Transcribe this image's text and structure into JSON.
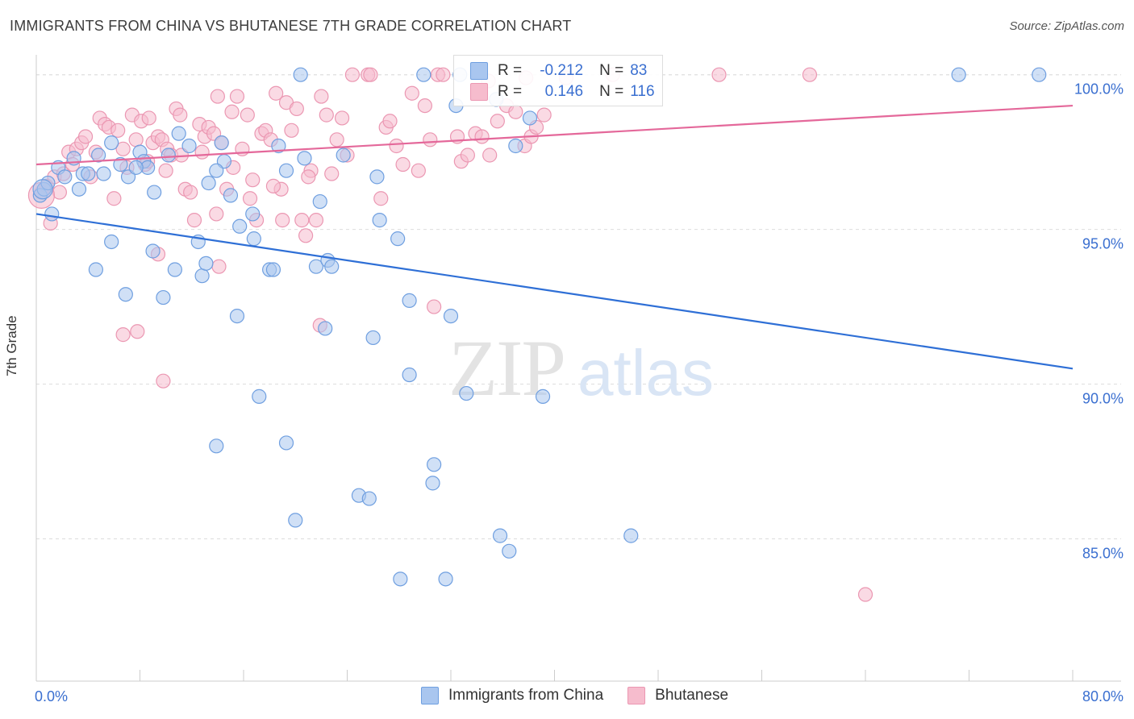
{
  "header": {
    "title": "IMMIGRANTS FROM CHINA VS BHUTANESE 7TH GRADE CORRELATION CHART",
    "source": "Source: ZipAtlas.com"
  },
  "watermark": {
    "zip": "ZIP",
    "atlas": "atlas"
  },
  "colors": {
    "blue_fill": "#a9c6ef",
    "blue_stroke": "#6f9fe0",
    "blue_line": "#2e6fd6",
    "pink_fill": "#f6bccd",
    "pink_stroke": "#eb97b2",
    "pink_line": "#e4689a",
    "axis_text": "#3a6fd0",
    "grid": "#dddddd"
  },
  "legend": {
    "rows": [
      {
        "r_label": "R =",
        "r_value": "-0.212",
        "n_label": "N =",
        "n_value": "83",
        "swatch": "blue"
      },
      {
        "r_label": "R =",
        "r_value": "0.146",
        "n_label": "N =",
        "n_value": "116",
        "swatch": "pink"
      }
    ]
  },
  "bottom_legend": [
    "Immigrants from China",
    "Bhutanese"
  ],
  "chart_data": {
    "type": "scatter",
    "title": "IMMIGRANTS FROM CHINA VS BHUTANESE 7TH GRADE CORRELATION CHART",
    "xlabel": "",
    "ylabel": "7th Grade",
    "xlim": [
      0,
      80
    ],
    "ylim": [
      80.4,
      100.8
    ],
    "x_tick_labels": [
      "0.0%",
      "80.0%"
    ],
    "y_ticks": [
      85,
      90,
      95,
      100
    ],
    "y_tick_labels": [
      "85.0%",
      "90.0%",
      "95.0%",
      "100.0%"
    ],
    "grid": true,
    "legend_position": "top-center",
    "series": [
      {
        "name": "Immigrants from China",
        "color": "#a9c6ef",
        "trend": {
          "x": [
            0,
            80
          ],
          "y": [
            95.5,
            90.5
          ]
        },
        "points": [
          [
            0.3,
            96.1
          ],
          [
            0.6,
            96.3
          ],
          [
            0.9,
            96.5
          ],
          [
            1.2,
            95.5
          ],
          [
            1.7,
            97.0
          ],
          [
            2.2,
            96.7
          ],
          [
            2.9,
            97.3
          ],
          [
            3.3,
            96.3
          ],
          [
            3.6,
            96.8
          ],
          [
            4.0,
            96.8
          ],
          [
            4.8,
            97.4
          ],
          [
            5.2,
            96.8
          ],
          [
            5.8,
            97.8
          ],
          [
            6.5,
            97.1
          ],
          [
            7.1,
            96.7
          ],
          [
            8.0,
            97.5
          ],
          [
            8.3,
            97.2
          ],
          [
            8.6,
            97.0
          ],
          [
            9.1,
            96.2
          ],
          [
            10.2,
            97.4
          ],
          [
            11.0,
            98.1
          ],
          [
            11.8,
            97.7
          ],
          [
            13.3,
            96.5
          ],
          [
            14.3,
            97.8
          ],
          [
            14.5,
            97.2
          ],
          [
            15.0,
            96.1
          ],
          [
            15.7,
            95.1
          ],
          [
            16.7,
            95.5
          ],
          [
            18.7,
            97.7
          ],
          [
            19.3,
            96.9
          ],
          [
            20.7,
            97.3
          ],
          [
            21.9,
            95.9
          ],
          [
            23.7,
            97.4
          ],
          [
            26.3,
            96.7
          ],
          [
            26.5,
            95.3
          ],
          [
            27.9,
            94.7
          ],
          [
            5.8,
            94.6
          ],
          [
            4.6,
            93.7
          ],
          [
            9.0,
            94.3
          ],
          [
            10.7,
            93.7
          ],
          [
            12.5,
            94.6
          ],
          [
            12.8,
            93.5
          ],
          [
            13.1,
            93.9
          ],
          [
            16.8,
            94.7
          ],
          [
            18.0,
            93.7
          ],
          [
            18.3,
            93.7
          ],
          [
            21.6,
            93.8
          ],
          [
            22.5,
            94.0
          ],
          [
            22.8,
            93.8
          ],
          [
            6.9,
            92.9
          ],
          [
            9.8,
            92.8
          ],
          [
            15.5,
            92.2
          ],
          [
            22.3,
            91.8
          ],
          [
            26.0,
            91.5
          ],
          [
            28.8,
            92.7
          ],
          [
            32.0,
            92.2
          ],
          [
            17.2,
            89.6
          ],
          [
            28.8,
            90.3
          ],
          [
            33.2,
            89.7
          ],
          [
            39.1,
            89.6
          ],
          [
            13.9,
            88.0
          ],
          [
            19.3,
            88.1
          ],
          [
            30.7,
            87.4
          ],
          [
            30.6,
            86.8
          ],
          [
            24.9,
            86.4
          ],
          [
            25.7,
            86.3
          ],
          [
            20.0,
            85.6
          ],
          [
            35.8,
            85.1
          ],
          [
            36.5,
            84.6
          ],
          [
            45.9,
            85.1
          ],
          [
            28.1,
            83.7
          ],
          [
            31.6,
            83.7
          ],
          [
            20.4,
            100.0
          ],
          [
            29.9,
            100.0
          ],
          [
            32.7,
            100.0
          ],
          [
            71.2,
            100.0
          ],
          [
            77.4,
            100.0
          ],
          [
            37.0,
            97.7
          ],
          [
            32.4,
            99.0
          ],
          [
            35.5,
            99.2
          ],
          [
            38.1,
            98.6
          ],
          [
            7.7,
            97.0
          ],
          [
            13.9,
            96.9
          ]
        ]
      },
      {
        "name": "Bhutanese",
        "color": "#f6bccd",
        "trend": {
          "x": [
            0,
            80
          ],
          "y": [
            97.1,
            99.0
          ]
        },
        "points": [
          [
            0.4,
            96.2
          ],
          [
            0.8,
            96.4
          ],
          [
            1.1,
            95.2
          ],
          [
            1.4,
            96.7
          ],
          [
            1.8,
            96.2
          ],
          [
            2.1,
            96.8
          ],
          [
            2.5,
            97.5
          ],
          [
            2.8,
            97.1
          ],
          [
            3.1,
            97.6
          ],
          [
            3.5,
            97.8
          ],
          [
            3.8,
            98.0
          ],
          [
            4.2,
            96.7
          ],
          [
            4.6,
            97.5
          ],
          [
            4.9,
            98.6
          ],
          [
            5.3,
            98.4
          ],
          [
            5.6,
            98.3
          ],
          [
            6.0,
            96.0
          ],
          [
            6.3,
            98.2
          ],
          [
            6.7,
            97.6
          ],
          [
            7.0,
            97.0
          ],
          [
            7.4,
            98.7
          ],
          [
            7.7,
            97.9
          ],
          [
            8.1,
            98.5
          ],
          [
            8.4,
            97.1
          ],
          [
            8.7,
            98.6
          ],
          [
            9.0,
            97.8
          ],
          [
            9.4,
            98.0
          ],
          [
            9.7,
            97.9
          ],
          [
            10.1,
            97.6
          ],
          [
            10.4,
            97.4
          ],
          [
            10.8,
            98.9
          ],
          [
            11.1,
            98.7
          ],
          [
            11.5,
            96.3
          ],
          [
            11.9,
            96.2
          ],
          [
            12.2,
            95.3
          ],
          [
            12.6,
            98.4
          ],
          [
            13.0,
            98.0
          ],
          [
            13.3,
            98.3
          ],
          [
            13.7,
            98.1
          ],
          [
            14.0,
            99.3
          ],
          [
            14.3,
            97.8
          ],
          [
            14.7,
            96.3
          ],
          [
            15.1,
            98.8
          ],
          [
            15.5,
            99.3
          ],
          [
            15.9,
            97.6
          ],
          [
            16.3,
            98.7
          ],
          [
            16.7,
            96.6
          ],
          [
            17.0,
            95.3
          ],
          [
            17.4,
            98.1
          ],
          [
            17.7,
            98.2
          ],
          [
            18.1,
            97.9
          ],
          [
            18.5,
            99.4
          ],
          [
            18.9,
            96.3
          ],
          [
            19.3,
            99.1
          ],
          [
            19.7,
            98.2
          ],
          [
            20.1,
            98.9
          ],
          [
            20.5,
            95.3
          ],
          [
            20.8,
            94.8
          ],
          [
            21.2,
            96.9
          ],
          [
            21.6,
            95.3
          ],
          [
            22.0,
            99.3
          ],
          [
            22.4,
            98.7
          ],
          [
            22.8,
            96.8
          ],
          [
            23.2,
            97.9
          ],
          [
            23.6,
            98.6
          ],
          [
            24.0,
            97.4
          ],
          [
            24.4,
            100.0
          ],
          [
            25.6,
            100.0
          ],
          [
            26.6,
            96.0
          ],
          [
            27.0,
            98.3
          ],
          [
            27.3,
            98.5
          ],
          [
            27.8,
            97.7
          ],
          [
            28.3,
            97.1
          ],
          [
            29.0,
            99.4
          ],
          [
            29.5,
            96.9
          ],
          [
            30.0,
            99.0
          ],
          [
            30.4,
            97.9
          ],
          [
            31.0,
            100.0
          ],
          [
            32.5,
            98.0
          ],
          [
            32.8,
            97.2
          ],
          [
            33.3,
            97.4
          ],
          [
            33.9,
            98.1
          ],
          [
            34.4,
            98.0
          ],
          [
            35.0,
            97.4
          ],
          [
            35.6,
            98.5
          ],
          [
            36.3,
            99.0
          ],
          [
            37.0,
            98.8
          ],
          [
            37.7,
            97.7
          ],
          [
            38.2,
            98.0
          ],
          [
            38.6,
            98.3
          ],
          [
            39.2,
            98.7
          ],
          [
            25.8,
            100.0
          ],
          [
            31.4,
            100.0
          ],
          [
            34.9,
            99.8
          ],
          [
            37.8,
            99.9
          ],
          [
            40.9,
            99.9
          ],
          [
            44.5,
            100.0
          ],
          [
            52.7,
            100.0
          ],
          [
            59.7,
            100.0
          ],
          [
            9.4,
            94.2
          ],
          [
            14.1,
            93.8
          ],
          [
            6.7,
            91.6
          ],
          [
            7.8,
            91.7
          ],
          [
            9.8,
            90.1
          ],
          [
            21.9,
            91.9
          ],
          [
            30.7,
            92.5
          ],
          [
            64.0,
            83.2
          ],
          [
            19.0,
            95.3
          ],
          [
            21.0,
            96.7
          ],
          [
            18.3,
            96.4
          ],
          [
            13.9,
            95.5
          ],
          [
            16.5,
            96.0
          ],
          [
            11.2,
            97.4
          ],
          [
            15.2,
            97.0
          ],
          [
            12.8,
            97.5
          ],
          [
            10.0,
            96.9
          ],
          [
            8.6,
            97.2
          ]
        ]
      }
    ]
  }
}
